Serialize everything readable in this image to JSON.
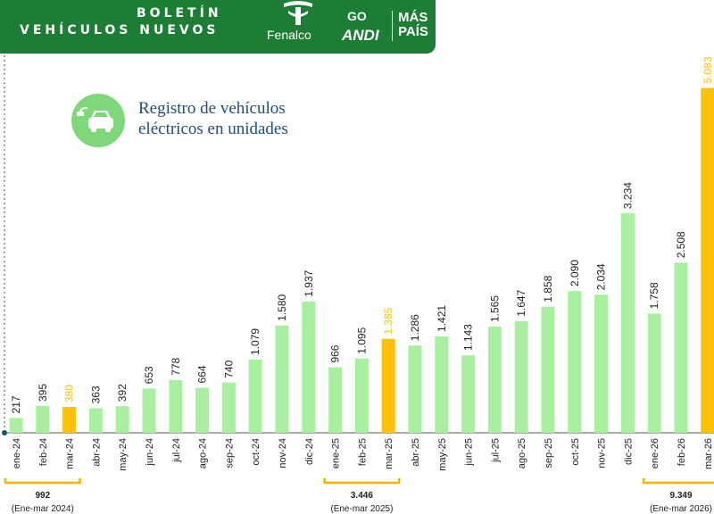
{
  "header": {
    "title_line1": "BOLETÍN",
    "title_line2": "VEHÍCULOS NUEVOS",
    "logos": [
      "Fenalco",
      "ANDI",
      "MÁS PAÍS"
    ],
    "andi_mark": "GO",
    "maspais_line1": "MÁS",
    "maspais_line2": "PAÍS",
    "band_color": "#1e7d35"
  },
  "chart_icon": "electric-car-icon",
  "chart_data": {
    "type": "bar",
    "title": "Registro de vehículos\neléctricos  en unidades",
    "categories": [
      "ene-24",
      "feb-24",
      "mar-24",
      "abr-24",
      "may-24",
      "jun-24",
      "jul-24",
      "ago-24",
      "sep-24",
      "oct-24",
      "nov-24",
      "dic-24",
      "ene-25",
      "feb-25",
      "mar-25",
      "abr-25",
      "may-25",
      "jun-25",
      "jul-25",
      "ago-25",
      "sep-25",
      "oct-25",
      "nov-25",
      "dic-25",
      "ene-26",
      "feb-26",
      "mar-26"
    ],
    "values": [
      217,
      395,
      380,
      363,
      392,
      653,
      778,
      664,
      740,
      1079,
      1580,
      1937,
      966,
      1095,
      1385,
      1286,
      1421,
      1143,
      1565,
      1647,
      1858,
      2090,
      2034,
      3234,
      1758,
      2508,
      5083
    ],
    "value_labels": [
      "217",
      "395",
      "380",
      "363",
      "392",
      "653",
      "778",
      "664",
      "740",
      "1.079",
      "1.580",
      "1.937",
      "966",
      "1.095",
      "1.385",
      "1.286",
      "1.421",
      "1.143",
      "1.565",
      "1.647",
      "1.858",
      "2.090",
      "2.034",
      "3.234",
      "1.758",
      "2.508",
      "5.083"
    ],
    "highlighted": [
      "mar-24",
      "mar-25",
      "mar-26"
    ],
    "colors": {
      "bar": "#a8f0a0",
      "highlight": "#ffc107",
      "axis": "#1f4e79",
      "bracket": "#f0b400"
    },
    "ylim": [
      0,
      5300
    ],
    "group_totals": [
      {
        "label": "992",
        "period": "(Ene-mar 2024)",
        "categories": [
          "ene-24",
          "feb-24",
          "mar-24"
        ]
      },
      {
        "label": "3.446",
        "period": "(Ene-mar 2025)",
        "categories": [
          "ene-25",
          "feb-25",
          "mar-25"
        ]
      },
      {
        "label": "9.349",
        "period": "(Ene-mar 2026)",
        "categories": [
          "ene-26",
          "feb-26",
          "mar-26"
        ]
      }
    ]
  }
}
